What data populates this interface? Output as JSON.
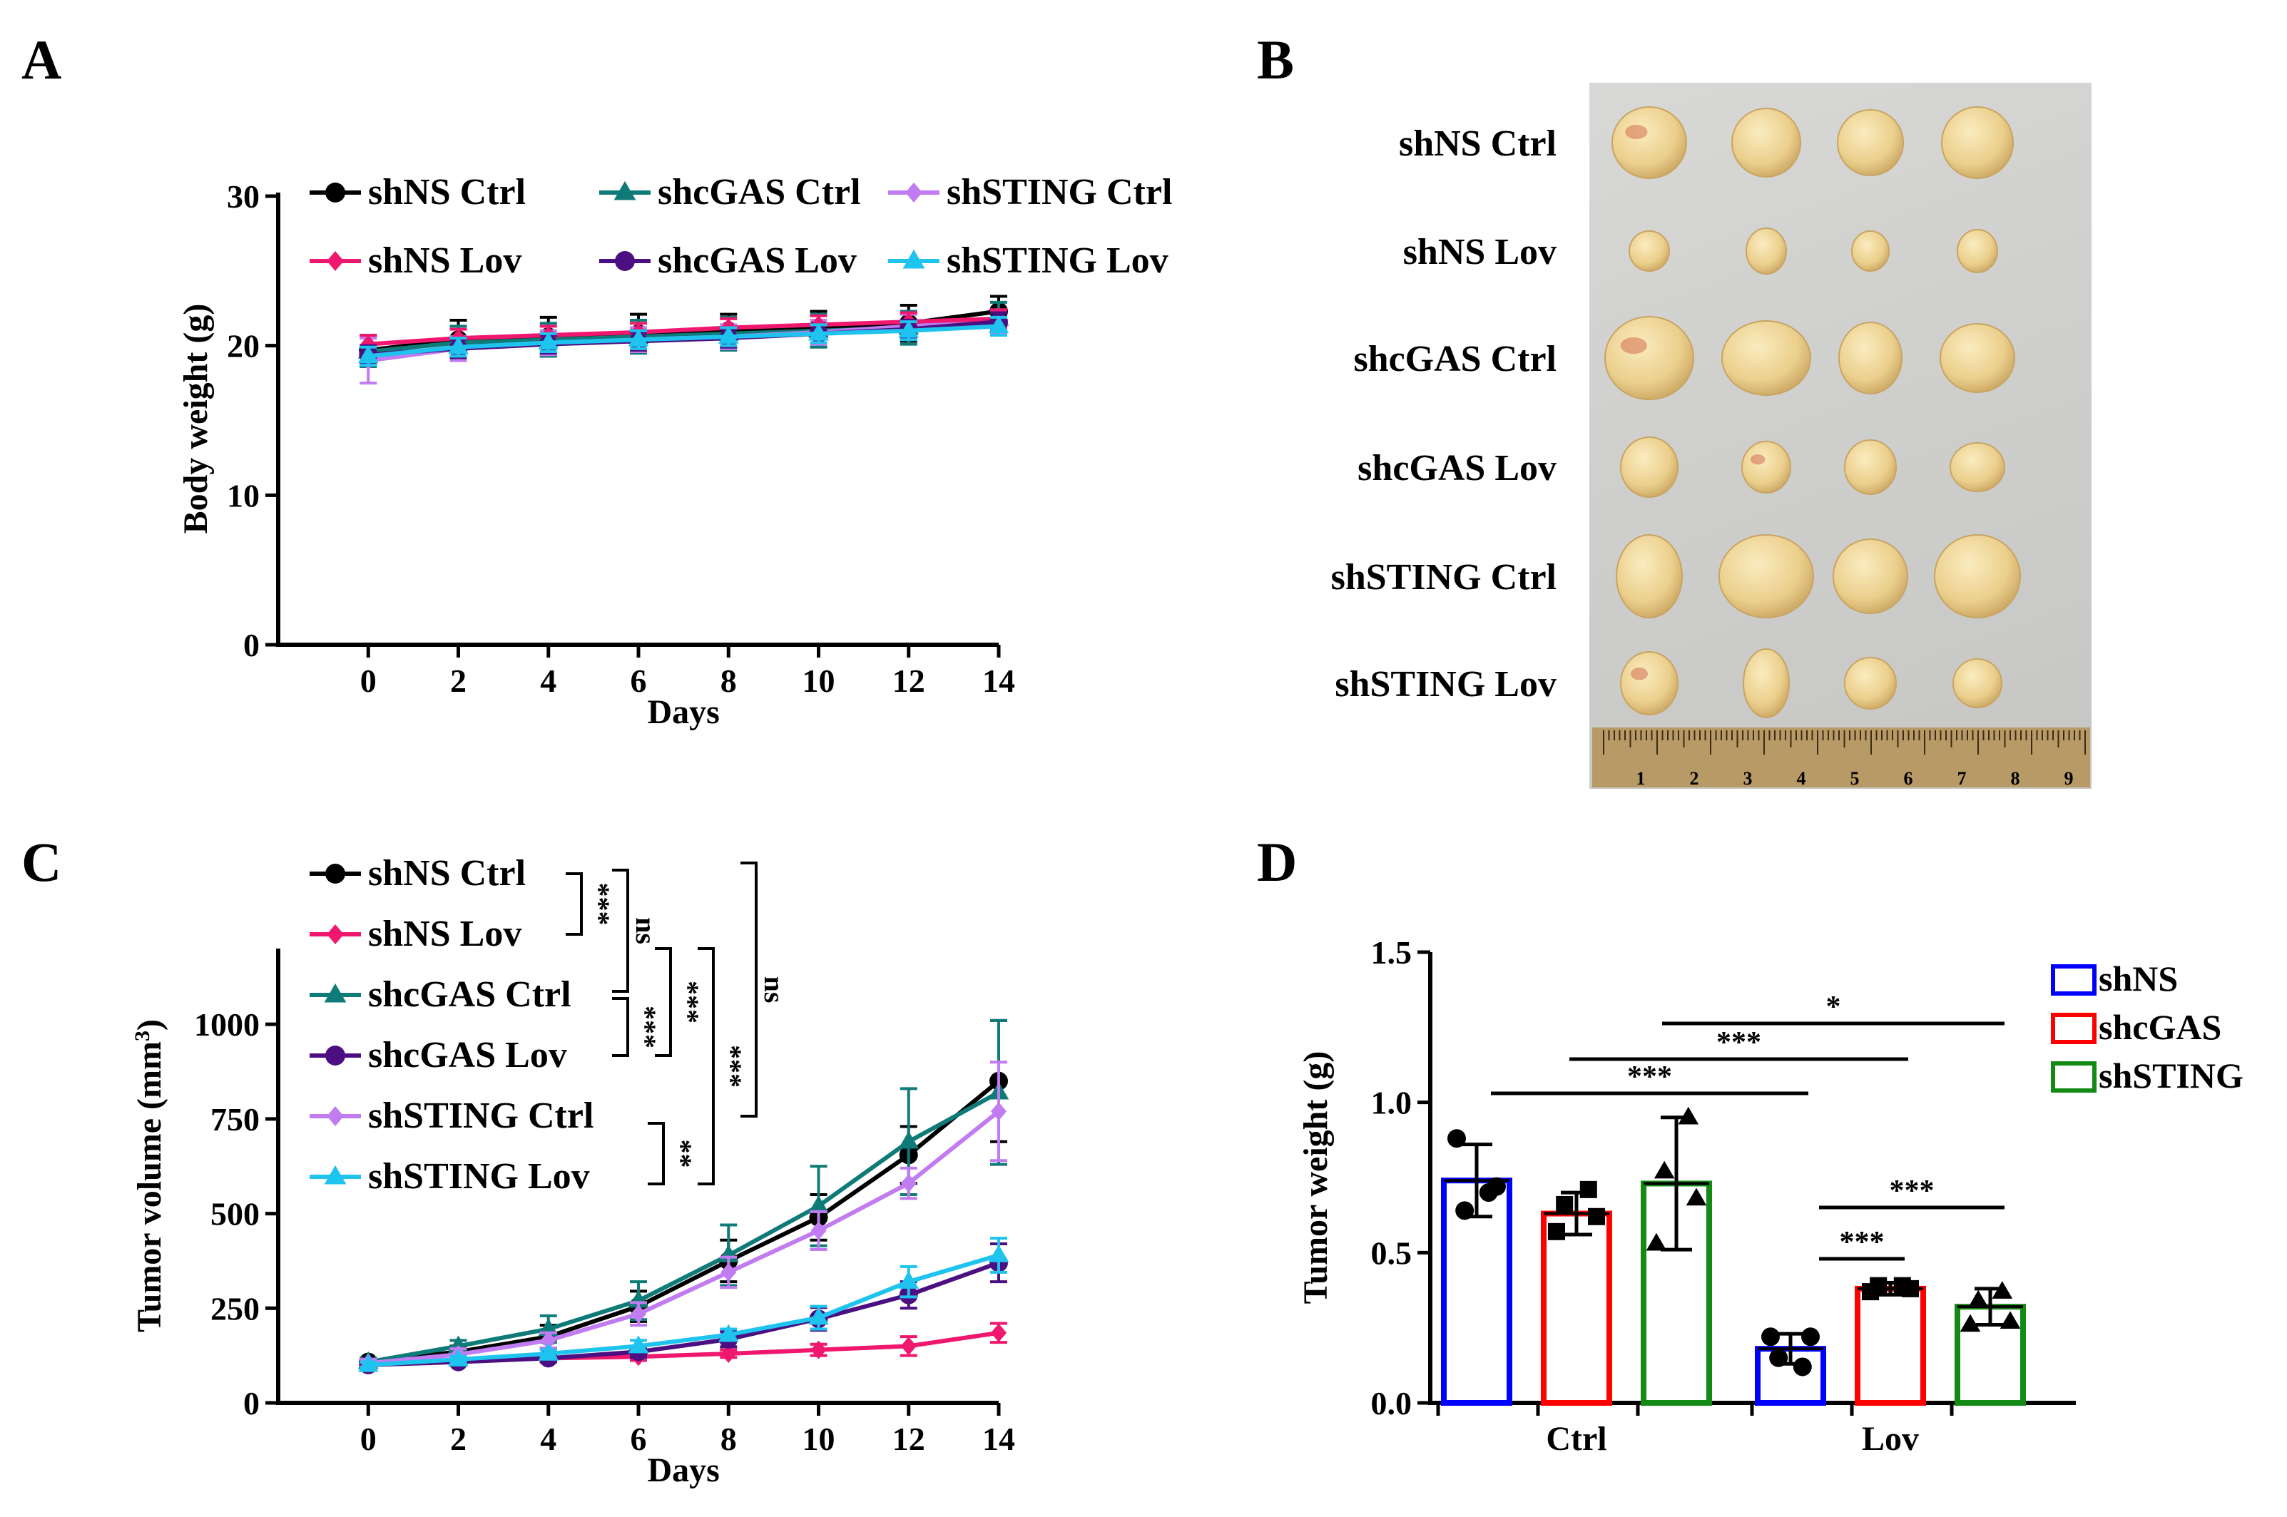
{
  "colors": {
    "shNS_Ctrl": "#000000",
    "shNS_Lov": "#f0176e",
    "shcGAS_Ctrl": "#0f7b78",
    "shcGAS_Lov": "#4b0f82",
    "shSTING_Ctrl": "#c07cf0",
    "shSTING_Lov": "#1ec3ee",
    "bar_shNS": "#0000ff",
    "bar_shcGAS": "#ff0000",
    "bar_shSTING": "#138a13",
    "tumor": "#e8cd8a",
    "tumor_red": "#d46b4a",
    "ruler": "#b89a66"
  },
  "panels": {
    "A": {
      "label": "A"
    },
    "B": {
      "label": "B",
      "rows": [
        "shNS Ctrl",
        "shNS Lov",
        "shcGAS Ctrl",
        "shcGAS Lov",
        "shSTING Ctrl",
        "shSTING Lov"
      ],
      "ruler_numbers": [
        "1",
        "2",
        "3",
        "4",
        "5",
        "6",
        "7",
        "8",
        "9"
      ]
    },
    "C": {
      "label": "C",
      "brackets": [
        {
          "text": "***"
        },
        {
          "text": "ns"
        },
        {
          "text": "***"
        },
        {
          "text": "***"
        },
        {
          "text": "***"
        },
        {
          "text": "ns"
        },
        {
          "text": "**"
        }
      ]
    },
    "D": {
      "label": "D",
      "comparisons": [
        {
          "text": "*"
        },
        {
          "text": "***"
        },
        {
          "text": "***"
        },
        {
          "text": "***"
        },
        {
          "text": "***"
        }
      ]
    }
  },
  "chart_data": [
    {
      "panel": "A",
      "type": "line",
      "xlabel": "Days",
      "ylabel": "Body weight (g)",
      "xlim": [
        -2,
        14
      ],
      "ylim": [
        0,
        30
      ],
      "xticks": [
        0,
        2,
        4,
        6,
        8,
        10,
        12,
        14
      ],
      "yticks": [
        0,
        10,
        20,
        30
      ],
      "x": [
        0,
        2,
        4,
        6,
        8,
        10,
        12,
        14
      ],
      "legend": "top",
      "series": [
        {
          "name": "shNS Ctrl",
          "marker": "circle",
          "values": [
            19.7,
            20.4,
            20.6,
            20.8,
            21.0,
            21.2,
            21.5,
            22.3
          ],
          "err": [
            1.0,
            1.3,
            1.3,
            1.3,
            1.1,
            1.1,
            1.2,
            1.0
          ]
        },
        {
          "name": "shcGAS Ctrl",
          "marker": "triangle",
          "values": [
            19.6,
            20.2,
            20.4,
            20.6,
            20.8,
            21.0,
            21.2,
            21.8
          ],
          "err": [
            1.0,
            1.1,
            1.1,
            1.1,
            1.1,
            1.1,
            1.1,
            1.1
          ]
        },
        {
          "name": "shSTING Ctrl",
          "marker": "diamond",
          "values": [
            19.0,
            19.8,
            20.2,
            20.4,
            20.6,
            20.9,
            21.3,
            21.6
          ],
          "err": [
            1.5,
            0.8,
            0.8,
            0.8,
            0.8,
            0.8,
            0.8,
            0.8
          ]
        },
        {
          "name": "shNS Lov",
          "marker": "diamond",
          "values": [
            20.1,
            20.5,
            20.7,
            20.9,
            21.2,
            21.4,
            21.6,
            21.8
          ],
          "err": [
            0.6,
            0.6,
            0.6,
            0.6,
            0.6,
            0.6,
            0.6,
            0.6
          ]
        },
        {
          "name": "shcGAS Lov",
          "marker": "circle",
          "values": [
            19.4,
            19.8,
            20.1,
            20.3,
            20.5,
            20.8,
            21.1,
            21.6
          ],
          "err": [
            0.6,
            0.6,
            0.6,
            0.6,
            0.6,
            0.6,
            0.6,
            0.6
          ]
        },
        {
          "name": "shSTING Lov",
          "marker": "triangle",
          "values": [
            19.3,
            19.9,
            20.2,
            20.4,
            20.6,
            20.8,
            21.0,
            21.3
          ],
          "err": [
            0.6,
            0.6,
            0.6,
            0.6,
            0.6,
            0.6,
            0.6,
            0.6
          ]
        }
      ]
    },
    {
      "panel": "C",
      "type": "line",
      "xlabel": "Days",
      "ylabel": "Tumor volume (mm3)",
      "xlim": [
        -2,
        14
      ],
      "ylim": [
        0,
        1200
      ],
      "xticks": [
        0,
        2,
        4,
        6,
        8,
        10,
        12,
        14
      ],
      "yticks": [
        0,
        250,
        500,
        750,
        1000
      ],
      "x": [
        0,
        2,
        4,
        6,
        8,
        10,
        12,
        14
      ],
      "legend": "top-left",
      "series": [
        {
          "name": "shNS Ctrl",
          "marker": "circle",
          "values": [
            108,
            135,
            175,
            255,
            375,
            490,
            655,
            850
          ],
          "err": [
            10,
            15,
            30,
            40,
            55,
            60,
            75,
            160
          ]
        },
        {
          "name": "shNS Lov",
          "marker": "diamond",
          "values": [
            100,
            112,
            118,
            122,
            130,
            140,
            150,
            185
          ],
          "err": [
            8,
            8,
            10,
            10,
            10,
            15,
            25,
            25
          ]
        },
        {
          "name": "shcGAS Ctrl",
          "marker": "triangle",
          "values": [
            108,
            150,
            195,
            270,
            390,
            520,
            690,
            820
          ],
          "err": [
            10,
            15,
            35,
            50,
            80,
            105,
            140,
            190
          ]
        },
        {
          "name": "shcGAS Lov",
          "marker": "circle",
          "values": [
            100,
            108,
            118,
            135,
            168,
            222,
            285,
            370
          ],
          "err": [
            8,
            8,
            10,
            15,
            20,
            30,
            35,
            50
          ]
        },
        {
          "name": "shSTING Ctrl",
          "marker": "diamond",
          "values": [
            105,
            128,
            165,
            235,
            345,
            455,
            580,
            770
          ],
          "err": [
            10,
            15,
            20,
            30,
            40,
            50,
            40,
            130
          ]
        },
        {
          "name": "shSTING Lov",
          "marker": "triangle",
          "values": [
            100,
            115,
            130,
            150,
            180,
            225,
            320,
            390
          ],
          "err": [
            8,
            8,
            10,
            15,
            15,
            30,
            40,
            45
          ]
        }
      ]
    },
    {
      "panel": "D",
      "type": "bar",
      "ylabel": "Tumor weight (g)",
      "ylim": [
        0,
        1.5
      ],
      "yticks": [
        0.0,
        0.5,
        1.0,
        1.5
      ],
      "categories": [
        "Ctrl",
        "Lov"
      ],
      "legend": "top-right",
      "series": [
        {
          "name": "shNS",
          "values": [
            0.74,
            0.18
          ],
          "err": [
            0.12,
            0.05
          ],
          "points": [
            [
              0.88,
              0.72,
              0.64,
              0.7
            ],
            [
              0.22,
              0.22,
              0.15,
              0.12
            ]
          ]
        },
        {
          "name": "shcGAS",
          "values": [
            0.63,
            0.38
          ],
          "err": [
            0.07,
            0.02
          ],
          "points": [
            [
              0.57,
              0.62,
              0.66,
              0.71
            ],
            [
              0.37,
              0.38,
              0.39,
              0.39
            ]
          ]
        },
        {
          "name": "shSTING",
          "values": [
            0.73,
            0.32
          ],
          "err": [
            0.22,
            0.06
          ],
          "points": [
            [
              0.53,
              0.68,
              0.77,
              0.95
            ],
            [
              0.26,
              0.27,
              0.34,
              0.37
            ]
          ]
        }
      ]
    }
  ]
}
